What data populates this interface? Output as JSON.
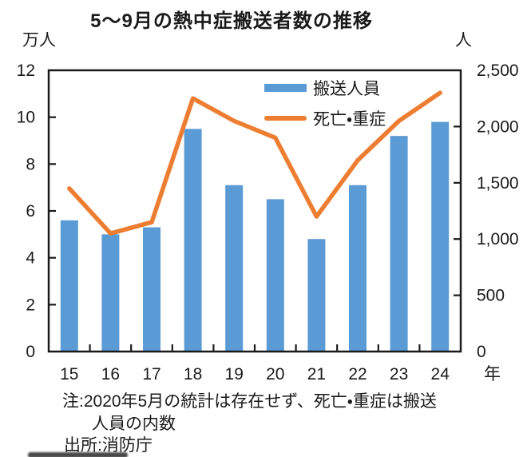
{
  "notes": [
    "注:2020年5月の統計は存在せず、死亡・重症は搬送",
    "人員の内数"
  ],
  "source": "出所:消防庁",
  "colors": {
    "bar": "#5B9BD5",
    "line": "#ED7D31",
    "axis": "#1a1a1a",
    "text": "#1a1a1a"
  },
  "chart_data": {
    "type": "bar",
    "combo": "bar+line",
    "title": "5〜9月の熱中症搬送者数の推移",
    "categories": [
      "15",
      "16",
      "17",
      "18",
      "19",
      "20",
      "21",
      "22",
      "23",
      "24"
    ],
    "series": [
      {
        "name": "搬送人員",
        "type": "bar",
        "axis": "left",
        "unit": "万人",
        "values": [
          5.6,
          5.0,
          5.3,
          9.5,
          7.1,
          6.5,
          4.8,
          7.1,
          9.2,
          9.8
        ]
      },
      {
        "name": "死亡・重症",
        "type": "line",
        "axis": "right",
        "unit": "人",
        "values": [
          1450,
          1050,
          1150,
          2250,
          2050,
          1900,
          1200,
          1700,
          2050,
          2300
        ]
      }
    ],
    "left_axis": {
      "label": "万人",
      "min": 0,
      "max": 12,
      "ticks": [
        "0",
        "2",
        "4",
        "6",
        "8",
        "10",
        "12"
      ]
    },
    "right_axis": {
      "label": "人",
      "min": 0,
      "max": 2500,
      "ticks": [
        "0",
        "500",
        "1,000",
        "1,500",
        "2,000",
        "2,500"
      ]
    },
    "x_axis": {
      "label": "年"
    },
    "grid": false,
    "legend_position": "top-right-inside"
  }
}
